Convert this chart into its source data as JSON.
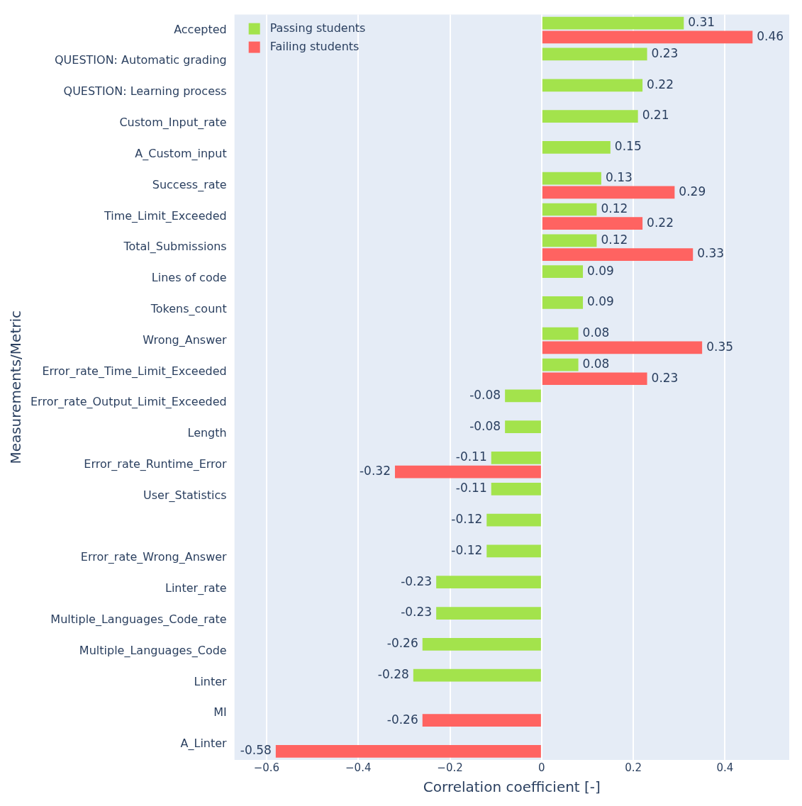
{
  "chart_data": {
    "type": "bar",
    "orientation": "horizontal",
    "xlabel": "Correlation coefficient [-]",
    "ylabel": "Measurements/Metric",
    "categories": [
      "Accepted",
      "QUESTION: Automatic grading",
      "QUESTION: Learning process",
      "Custom_Input_rate",
      "A_Custom_input",
      "Success_rate",
      "Time_Limit_Exceeded",
      "Total_Submissions",
      "Lines of code",
      "Tokens_count",
      "Wrong_Answer",
      "Error_rate_Time_Limit_Exceeded",
      "Error_rate_Output_Limit_Exceeded",
      "Length",
      "Error_rate_Runtime_Error",
      "User_Statistics",
      null,
      "Error_rate_Wrong_Answer",
      "Linter_rate",
      "Multiple_Languages_Code_rate",
      "Multiple_Languages_Code",
      "Linter",
      "MI",
      "A_Linter"
    ],
    "series": [
      {
        "name": "Passing students",
        "color": "#a3e34c",
        "values": [
          0.31,
          0.23,
          0.22,
          0.21,
          0.15,
          0.13,
          0.12,
          0.12,
          0.09,
          0.09,
          0.08,
          0.08,
          -0.08,
          -0.08,
          -0.11,
          -0.11,
          -0.12,
          -0.12,
          -0.23,
          -0.23,
          -0.26,
          -0.28,
          null,
          null
        ]
      },
      {
        "name": "Failing students",
        "color": "#ff6361",
        "values": [
          0.46,
          null,
          null,
          null,
          null,
          0.29,
          0.22,
          0.33,
          null,
          null,
          0.35,
          0.23,
          null,
          null,
          -0.32,
          null,
          null,
          null,
          null,
          null,
          null,
          null,
          -0.26,
          -0.58
        ]
      }
    ],
    "xlim": [
      -0.67,
      0.54
    ],
    "xticks": [
      {
        "value": -0.6,
        "label": "−0.6"
      },
      {
        "value": -0.4,
        "label": "−0.4"
      },
      {
        "value": -0.2,
        "label": "−0.2"
      },
      0,
      0.2,
      0.4
    ],
    "data_labels": true,
    "grid": "x",
    "legend": "top left"
  }
}
